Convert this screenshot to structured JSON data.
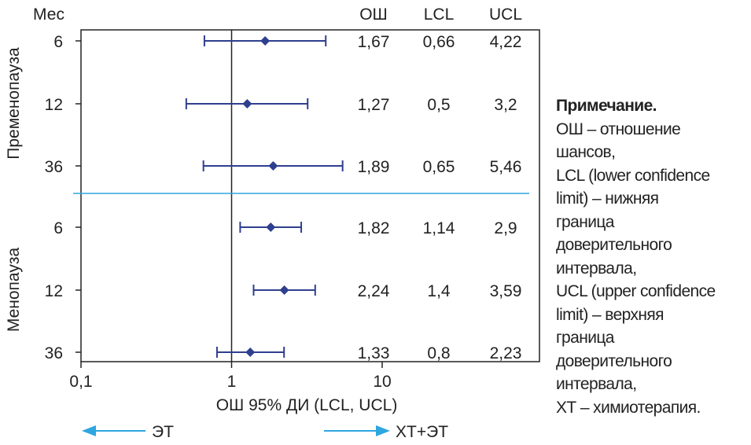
{
  "chart_data": {
    "type": "forest",
    "xscale": "log",
    "xlim": [
      0.1,
      110
    ],
    "xticks": [
      0.1,
      1,
      10
    ],
    "xtick_labels": [
      "0,1",
      "1",
      "10"
    ],
    "xlabel": "ОШ 95% ДИ (LCL, UCL)",
    "reference_line": 1,
    "column_headers": {
      "month": "Мес",
      "or": "ОШ",
      "lcl": "LCL",
      "ucl": "UCL"
    },
    "groups": [
      {
        "name": "Пременопауза",
        "rows": [
          {
            "month": "6",
            "or": 1.67,
            "lcl": 0.66,
            "ucl": 4.22,
            "or_label": "1,67",
            "lcl_label": "0,66",
            "ucl_label": "4,22"
          },
          {
            "month": "12",
            "or": 1.27,
            "lcl": 0.5,
            "ucl": 3.2,
            "or_label": "1,27",
            "lcl_label": "0,5",
            "ucl_label": "3,2"
          },
          {
            "month": "36",
            "or": 1.89,
            "lcl": 0.65,
            "ucl": 5.46,
            "or_label": "1,89",
            "lcl_label": "0,65",
            "ucl_label": "5,46"
          }
        ]
      },
      {
        "name": "Менопауза",
        "rows": [
          {
            "month": "6",
            "or": 1.82,
            "lcl": 1.14,
            "ucl": 2.9,
            "or_label": "1,82",
            "lcl_label": "1,14",
            "ucl_label": "2,9"
          },
          {
            "month": "12",
            "or": 2.24,
            "lcl": 1.4,
            "ucl": 3.59,
            "or_label": "2,24",
            "lcl_label": "1,4",
            "ucl_label": "3,59"
          },
          {
            "month": "36",
            "or": 1.33,
            "lcl": 0.8,
            "ucl": 2.23,
            "or_label": "1,33",
            "lcl_label": "0,8",
            "ucl_label": "2,23"
          }
        ]
      }
    ],
    "arrows": {
      "left": "ЭТ",
      "right": "ХТ+ЭТ"
    },
    "colors": {
      "marker": "#2f3f8f",
      "separator": "#2ea6df",
      "arrow": "#2ea6df"
    }
  },
  "note": {
    "title": "Примечание.",
    "lines": [
      "ОШ – отношение",
      "шансов,",
      "LCL (lower confidence",
      "limit) – нижняя",
      "граница",
      "доверительного",
      "интервала,",
      "UCL (upper confidence",
      "limit) – верхняя",
      "граница",
      "доверительного",
      "интервала,",
      "ХТ – химиотерапия."
    ]
  }
}
